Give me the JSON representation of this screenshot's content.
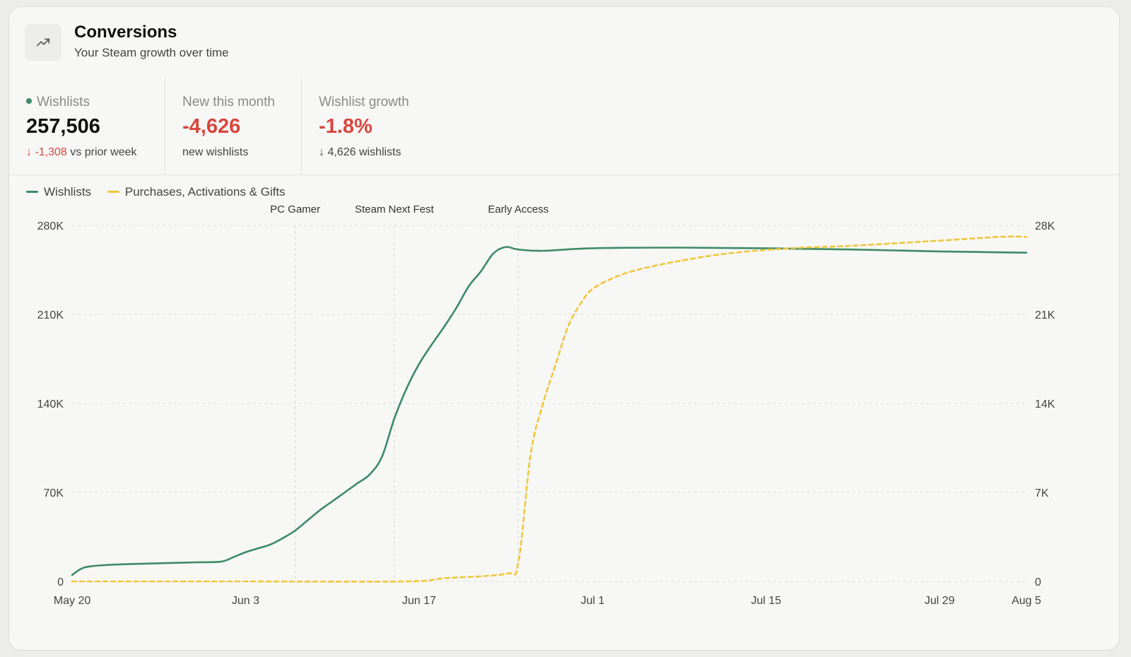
{
  "header": {
    "icon": "trending-up-icon",
    "title": "Conversions",
    "subtitle": "Your Steam growth over time"
  },
  "stats": [
    {
      "label": "Wishlists",
      "value": "257,506",
      "delta": "-1,308",
      "delta_suffix": "vs prior week"
    },
    {
      "label": "New this month",
      "value": "-4,626",
      "sub": "new wishlists"
    },
    {
      "label": "Wishlist growth",
      "value": "-1.8%",
      "sub": "4,626 wishlists"
    }
  ],
  "colors": {
    "wishlists": "#3d8a69",
    "purchases": "#f0c63c",
    "negative": "#d9453d"
  },
  "chart_data": {
    "type": "line",
    "legend": [
      "Wishlists",
      "Purchases, Activations & Gifts"
    ],
    "x_ticks": [
      "May 20",
      "Jun 3",
      "Jun 17",
      "Jul 1",
      "Jul 15",
      "Jul 29",
      "Aug 5"
    ],
    "y_left": {
      "ticks": [
        "0",
        "70K",
        "140K",
        "210K",
        "280K"
      ],
      "range": [
        0,
        280000
      ]
    },
    "y_right": {
      "ticks": [
        "0",
        "7K",
        "14K",
        "21K",
        "28K"
      ],
      "range": [
        0,
        28000
      ]
    },
    "annotations": [
      {
        "label": "PC Gamer",
        "date": "2024-06-07"
      },
      {
        "label": "Steam Next Fest",
        "date": "2024-06-15"
      },
      {
        "label": "Early Access",
        "date": "2024-06-25"
      }
    ],
    "series": [
      {
        "name": "Wishlists",
        "axis": "left",
        "color": "#3d8a69",
        "style": "solid",
        "points": [
          [
            "2024-05-20",
            5000
          ],
          [
            "2024-05-21",
            11000
          ],
          [
            "2024-05-23",
            13000
          ],
          [
            "2024-05-26",
            14000
          ],
          [
            "2024-05-30",
            15000
          ],
          [
            "2024-06-01",
            15500
          ],
          [
            "2024-06-02",
            19000
          ],
          [
            "2024-06-03",
            23000
          ],
          [
            "2024-06-04",
            26000
          ],
          [
            "2024-06-05",
            29000
          ],
          [
            "2024-06-06",
            34000
          ],
          [
            "2024-06-07",
            40000
          ],
          [
            "2024-06-08",
            48000
          ],
          [
            "2024-06-09",
            56000
          ],
          [
            "2024-06-10",
            63000
          ],
          [
            "2024-06-11",
            70000
          ],
          [
            "2024-06-12",
            77000
          ],
          [
            "2024-06-13",
            84000
          ],
          [
            "2024-06-14",
            98000
          ],
          [
            "2024-06-15",
            128000
          ],
          [
            "2024-06-16",
            152000
          ],
          [
            "2024-06-17",
            171000
          ],
          [
            "2024-06-18",
            186000
          ],
          [
            "2024-06-19",
            200000
          ],
          [
            "2024-06-20",
            215000
          ],
          [
            "2024-06-21",
            232000
          ],
          [
            "2024-06-22",
            244000
          ],
          [
            "2024-06-23",
            258000
          ],
          [
            "2024-06-24",
            263000
          ],
          [
            "2024-06-25",
            261000
          ],
          [
            "2024-06-27",
            260000
          ],
          [
            "2024-07-01",
            262000
          ],
          [
            "2024-07-08",
            262500
          ],
          [
            "2024-07-15",
            262000
          ],
          [
            "2024-07-22",
            261000
          ],
          [
            "2024-07-29",
            259500
          ],
          [
            "2024-08-05",
            258500
          ]
        ]
      },
      {
        "name": "Purchases, Activations & Gifts",
        "axis": "right",
        "color": "#f0c63c",
        "style": "dashed",
        "points": [
          [
            "2024-05-20",
            0
          ],
          [
            "2024-06-03",
            0
          ],
          [
            "2024-06-16",
            0
          ],
          [
            "2024-06-19",
            250
          ],
          [
            "2024-06-24",
            600
          ],
          [
            "2024-06-25",
            1500
          ],
          [
            "2024-06-26",
            10000
          ],
          [
            "2024-06-27",
            14000
          ],
          [
            "2024-06-28",
            17000
          ],
          [
            "2024-06-29",
            20000
          ],
          [
            "2024-06-30",
            21800
          ],
          [
            "2024-07-01",
            23000
          ],
          [
            "2024-07-03",
            24000
          ],
          [
            "2024-07-05",
            24600
          ],
          [
            "2024-07-08",
            25200
          ],
          [
            "2024-07-12",
            25800
          ],
          [
            "2024-07-17",
            26200
          ],
          [
            "2024-07-22",
            26400
          ],
          [
            "2024-07-29",
            26800
          ],
          [
            "2024-08-03",
            27100
          ],
          [
            "2024-08-05",
            27100
          ]
        ]
      }
    ]
  }
}
